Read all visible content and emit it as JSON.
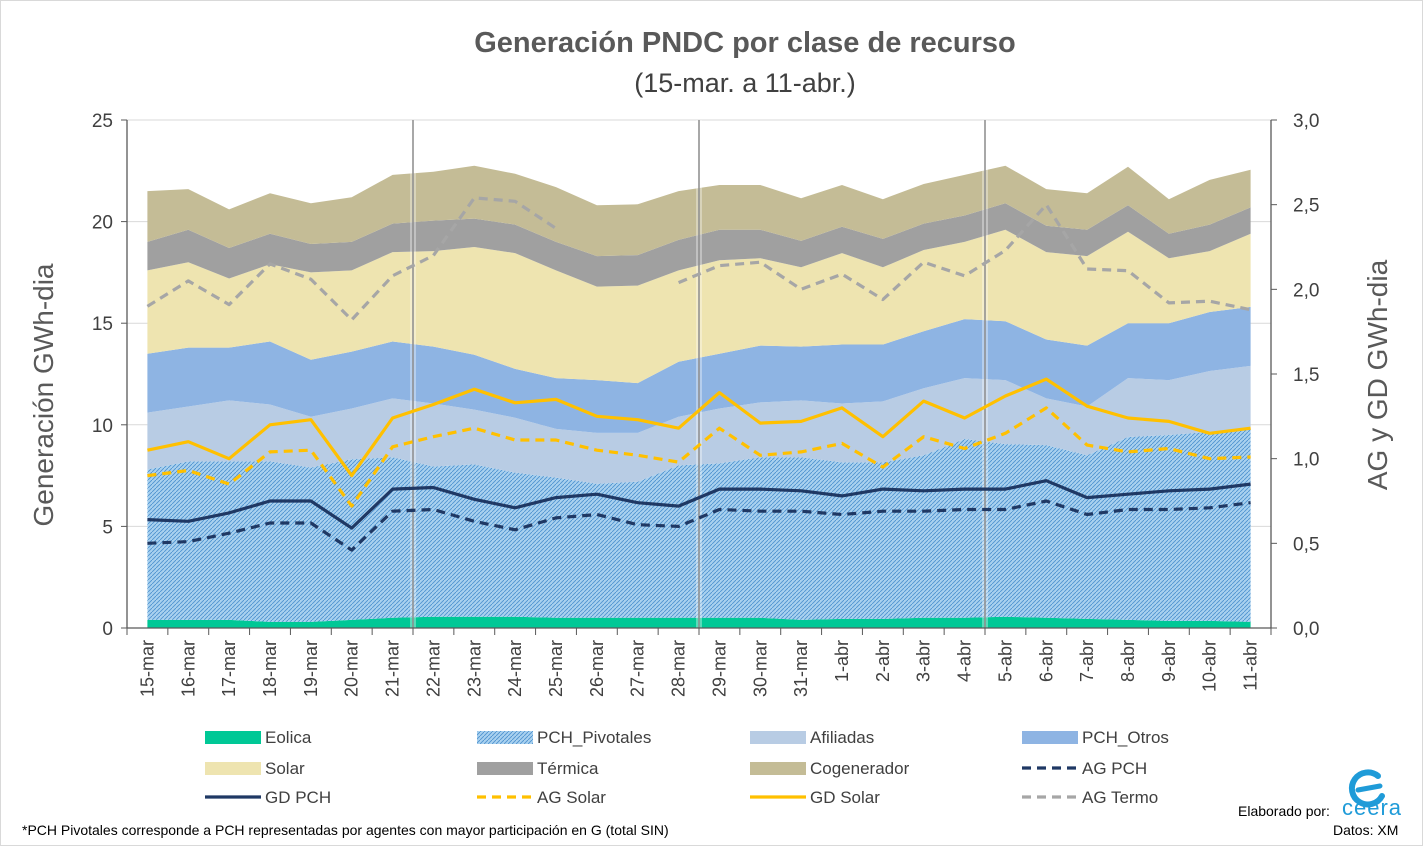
{
  "chart_data": {
    "type": "area",
    "title": "Generación PNDC por clase de recurso",
    "subtitle": "(15-mar. a 11-abr.)",
    "ylabel": "Generación GWh-dia",
    "y2label": "AG y GD  GWh-dia",
    "ylim": [
      0,
      25
    ],
    "y2lim": [
      0,
      3.0
    ],
    "yticks": [
      "0",
      "5",
      "10",
      "15",
      "20",
      "25"
    ],
    "y2ticks": [
      "0,0",
      "0,5",
      "1,0",
      "1,5",
      "2,0",
      "2,5",
      "3,0"
    ],
    "categories": [
      "15-mar",
      "16-mar",
      "17-mar",
      "18-mar",
      "19-mar",
      "20-mar",
      "21-mar",
      "22-mar",
      "23-mar",
      "24-mar",
      "25-mar",
      "26-mar",
      "27-mar",
      "28-mar",
      "29-mar",
      "30-mar",
      "31-mar",
      "1-abr",
      "2-abr",
      "3-abr",
      "4-abr",
      "5-abr",
      "6-abr",
      "7-abr",
      "8-abr",
      "9-abr",
      "10-abr",
      "11-abr"
    ],
    "week_separators_after": [
      "21-mar",
      "28-mar",
      "4-abr"
    ],
    "stacked_series": [
      {
        "name": "Eolica",
        "color": "#00c896",
        "pattern": "solid",
        "values": [
          0.4,
          0.4,
          0.4,
          0.3,
          0.3,
          0.4,
          0.5,
          0.55,
          0.55,
          0.55,
          0.5,
          0.5,
          0.5,
          0.5,
          0.5,
          0.5,
          0.4,
          0.45,
          0.45,
          0.5,
          0.5,
          0.55,
          0.5,
          0.45,
          0.4,
          0.35,
          0.35,
          0.3
        ]
      },
      {
        "name": "PCH_Pivotales",
        "color": "#7fb8e6",
        "pattern": "hatch",
        "values": [
          7.4,
          7.8,
          7.8,
          7.9,
          7.6,
          7.9,
          7.9,
          7.4,
          7.5,
          7.1,
          6.9,
          6.6,
          6.7,
          7.5,
          7.6,
          7.9,
          8.0,
          7.7,
          7.7,
          8.0,
          8.8,
          8.5,
          8.5,
          8.05,
          9.0,
          9.15,
          9.3,
          9.5
        ]
      },
      {
        "name": "Afiliadas",
        "color": "#b8cce4",
        "pattern": "solid",
        "values": [
          2.8,
          2.7,
          3.0,
          2.8,
          2.5,
          2.5,
          2.9,
          3.1,
          2.7,
          2.7,
          2.4,
          2.5,
          2.4,
          2.4,
          2.7,
          2.7,
          2.8,
          2.9,
          3.0,
          3.3,
          3.0,
          3.15,
          2.3,
          2.4,
          2.9,
          2.7,
          3.0,
          3.1
        ]
      },
      {
        "name": "PCH_Otros",
        "color": "#8eb4e3",
        "pattern": "solid",
        "values": [
          2.9,
          2.9,
          2.6,
          3.1,
          2.8,
          2.8,
          2.8,
          2.8,
          2.7,
          2.4,
          2.5,
          2.6,
          2.45,
          2.7,
          2.7,
          2.8,
          2.65,
          2.9,
          2.8,
          2.8,
          2.9,
          2.9,
          2.9,
          3.0,
          2.7,
          2.8,
          2.9,
          2.9
        ]
      },
      {
        "name": "Solar",
        "color": "#eee4b0",
        "pattern": "solid",
        "values": [
          4.1,
          4.2,
          3.4,
          3.8,
          4.3,
          4.0,
          4.4,
          4.7,
          5.3,
          5.7,
          5.3,
          4.6,
          4.8,
          4.5,
          4.6,
          4.3,
          3.9,
          4.5,
          3.8,
          4.0,
          3.8,
          4.5,
          4.3,
          4.4,
          4.5,
          3.2,
          3.0,
          3.6
        ]
      },
      {
        "name": "Térmica",
        "color": "#a0a0a0",
        "pattern": "solid",
        "values": [
          1.4,
          1.6,
          1.5,
          1.5,
          1.4,
          1.4,
          1.4,
          1.5,
          1.4,
          1.4,
          1.4,
          1.5,
          1.5,
          1.5,
          1.5,
          1.4,
          1.3,
          1.3,
          1.4,
          1.3,
          1.3,
          1.3,
          1.3,
          1.3,
          1.3,
          1.2,
          1.3,
          1.3
        ]
      },
      {
        "name": "Cogenerador",
        "color": "#c4bc96",
        "pattern": "solid",
        "values": [
          2.5,
          2.0,
          1.9,
          2.0,
          2.0,
          2.2,
          2.4,
          2.4,
          2.6,
          2.5,
          2.7,
          2.5,
          2.5,
          2.4,
          2.2,
          2.2,
          2.1,
          2.05,
          1.95,
          1.95,
          2.0,
          1.85,
          1.8,
          1.8,
          1.9,
          1.7,
          2.2,
          1.85
        ]
      }
    ],
    "line_series": [
      {
        "name": "AG PCH",
        "axis": "right",
        "color": "#1f3864",
        "dash": "dash",
        "values": [
          0.5,
          0.51,
          0.56,
          0.62,
          0.62,
          0.46,
          0.69,
          0.7,
          0.63,
          0.58,
          0.65,
          0.67,
          0.61,
          0.6,
          0.7,
          0.69,
          0.69,
          0.67,
          0.69,
          0.69,
          0.7,
          0.7,
          0.75,
          0.67,
          0.7,
          0.7,
          0.71,
          0.74
        ]
      },
      {
        "name": "GD PCH",
        "axis": "right",
        "color": "#1f3864",
        "dash": "solid",
        "values": [
          0.64,
          0.63,
          0.68,
          0.75,
          0.75,
          0.59,
          0.82,
          0.83,
          0.76,
          0.71,
          0.77,
          0.79,
          0.74,
          0.72,
          0.82,
          0.82,
          0.81,
          0.78,
          0.82,
          0.81,
          0.82,
          0.82,
          0.87,
          0.77,
          0.79,
          0.81,
          0.82,
          0.85
        ]
      },
      {
        "name": "AG Solar",
        "axis": "right",
        "color": "#ffc000",
        "dash": "dash",
        "values": [
          0.9,
          0.93,
          0.85,
          1.04,
          1.05,
          0.72,
          1.07,
          1.13,
          1.18,
          1.11,
          1.11,
          1.05,
          1.02,
          0.98,
          1.18,
          1.02,
          1.04,
          1.09,
          0.95,
          1.13,
          1.06,
          1.15,
          1.3,
          1.08,
          1.04,
          1.06,
          1.0,
          1.01
        ]
      },
      {
        "name": "GD Solar",
        "axis": "right",
        "color": "#ffc000",
        "dash": "solid",
        "values": [
          1.05,
          1.1,
          1.0,
          1.2,
          1.23,
          0.9,
          1.24,
          1.32,
          1.41,
          1.33,
          1.35,
          1.25,
          1.23,
          1.18,
          1.39,
          1.21,
          1.22,
          1.3,
          1.13,
          1.34,
          1.24,
          1.37,
          1.47,
          1.31,
          1.24,
          1.22,
          1.15,
          1.18
        ]
      },
      {
        "name": "AG Termo",
        "axis": "right",
        "color": "#a6a6a6",
        "dash": "dash",
        "values": [
          1.9,
          2.05,
          1.91,
          2.15,
          2.06,
          1.82,
          2.08,
          2.2,
          2.54,
          2.52,
          2.36,
          null,
          null,
          2.04,
          2.14,
          2.16,
          2.0,
          2.09,
          1.94,
          2.16,
          2.08,
          2.23,
          2.5,
          2.12,
          2.11,
          1.92,
          1.93,
          1.88
        ]
      }
    ],
    "legend_order": [
      "Eolica",
      "PCH_Pivotales",
      "Afiliadas",
      "PCH_Otros",
      "Solar",
      "Térmica",
      "Cogenerador",
      "AG PCH",
      "GD PCH",
      "AG Solar",
      "GD Solar",
      "AG Termo"
    ],
    "legend_position": "bottom",
    "grid": "horizontal"
  },
  "footnote": "*PCH Pivotales corresponde a PCH representadas por agentes con mayor participación en G (total SIN)",
  "credit": {
    "elaborado": "Elaborado por:",
    "brand": "ceera",
    "datos": "Datos: XM"
  }
}
